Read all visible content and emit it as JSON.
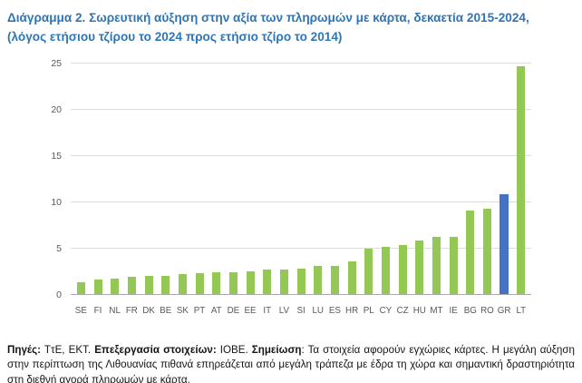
{
  "title": "Διάγραμμα 2. Σωρευτική αύξηση στην αξία των πληρωμών με κάρτα, δεκαετία 2015-2024, (λόγος ετήσιου τζίρου το 2024 προς ετήσιο τζίρο το 2014)",
  "chart_data": {
    "type": "bar",
    "categories": [
      "SE",
      "FI",
      "NL",
      "FR",
      "DK",
      "BE",
      "SK",
      "PT",
      "AT",
      "DE",
      "EE",
      "IT",
      "LV",
      "SI",
      "LU",
      "ES",
      "HR",
      "PL",
      "CY",
      "CZ",
      "HU",
      "MT",
      "IE",
      "BG",
      "RO",
      "GR",
      "LT"
    ],
    "values": [
      1.3,
      1.6,
      1.7,
      1.9,
      2.0,
      2.0,
      2.2,
      2.3,
      2.4,
      2.4,
      2.5,
      2.6,
      2.6,
      2.7,
      3.0,
      3.0,
      3.5,
      4.9,
      5.1,
      5.3,
      5.8,
      6.2,
      6.2,
      9.0,
      9.2,
      10.8,
      24.6
    ],
    "highlight_category": "GR",
    "title": "",
    "xlabel": "",
    "ylabel": "",
    "ylim": [
      0,
      25
    ],
    "yticks": [
      0,
      5,
      10,
      15,
      20,
      25
    ],
    "grid": true,
    "legend": false,
    "bar_color": "#92C853",
    "highlight_color": "#4472C4"
  },
  "colors": {
    "title_blue": "#2E75B6",
    "axis_text": "#595959",
    "gridline": "#DCDCDC",
    "bar_green": "#92C853",
    "bar_blue": "#4472C4"
  },
  "footer": {
    "segments": [
      {
        "text": "Πηγές:",
        "bold": true
      },
      {
        "text": " ΤτΕ, ΕΚΤ. ",
        "bold": false
      },
      {
        "text": "Επεξεργασία στοιχείων:",
        "bold": true
      },
      {
        "text": " ΙΟΒΕ. ",
        "bold": false
      },
      {
        "text": "Σημείωση",
        "bold": true
      },
      {
        "text": ": Τα στοιχεία αφορούν εγχώριες κάρτες. Η μεγάλη αύξηση στην περίπτωση της Λιθουανίας πιθανά επηρεάζεται από μεγάλη τράπεζα με έδρα τη χώρα και σημαντική δραστηριότητα στη διεθνή αγορά πληρωμών με κάρτα.",
        "bold": false
      }
    ]
  }
}
